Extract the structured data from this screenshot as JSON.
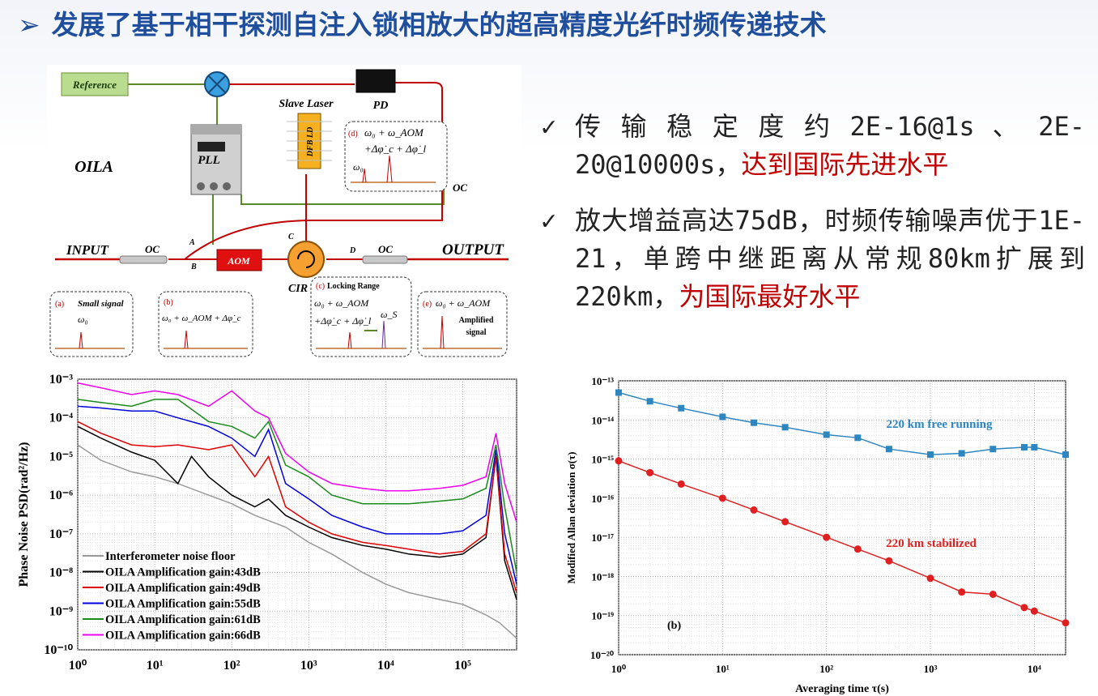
{
  "slide": {
    "title_arrow": "➢",
    "title": "发展了基于相干探测自注入锁相放大的超高精度光纤时频传递技术"
  },
  "bullets": [
    {
      "check": "✓",
      "text": "传 输 稳 定 度 约 2E-16@1s 、 2E-20@10000s，",
      "highlight": "达到国际先进水平"
    },
    {
      "check": "✓",
      "text": "放大增益高达75dB，时频传输噪声优于1E-21，单跨中继距离从常规80km扩展到220km，",
      "highlight": "为国际最好水平"
    }
  ],
  "diagram": {
    "reference": "Reference",
    "pll": "PLL",
    "oila": "OILA",
    "slave_laser": "Slave Laser",
    "pd": "PD",
    "dfb": "DFB LD",
    "oc": "OC",
    "input": "INPUT",
    "output": "OUTPUT",
    "aom": "AOM",
    "cir": "CIR",
    "port_a": "A",
    "port_b": "B",
    "port_c": "C",
    "port_d": "D",
    "box_a_tag": "(a)",
    "box_a_title": "Small signal",
    "box_a_eq": "ω₀",
    "box_b_tag": "(b)",
    "box_b_eq": "ω₀ + ω_AOM + Δφ̇_c",
    "box_c_tag": "(c)",
    "box_c_title": "Locking Range",
    "box_c_eq1": "ω₀ + ω_AOM",
    "box_c_eq2": "+Δφ̇_c + Δφ̇_l",
    "box_c_eq3": "ω_S",
    "box_d_tag": "(d)",
    "box_d_eq1": "ω₀ + ω_AOM",
    "box_d_eq2": "+Δφ̇_c + Δφ̇_l",
    "box_d_eq3": "ω₀",
    "box_e_tag": "(e)",
    "box_e_eq": "ω₀ + ω_AOM",
    "box_e_title1": "Amplified",
    "box_e_title2": "signal",
    "colors": {
      "red": "#c00000",
      "green": "#5a8a2a",
      "orange": "#e89a2a",
      "ref_box": "#b9dc8e",
      "mixer": "#3aa0e0"
    }
  },
  "chart_data": [
    {
      "type": "line",
      "xscale": "log",
      "yscale": "log",
      "xlim": [
        1,
        500000
      ],
      "ylim": [
        1e-10,
        0.001
      ],
      "ylabel": "Phase Noise PSD(rad²/Hz)",
      "xticks": [
        "10⁰",
        "10¹",
        "10²",
        "10³",
        "10⁴",
        "10⁵"
      ],
      "yticks": [
        "10⁻³",
        "10⁻⁴",
        "10⁻⁵",
        "10⁻⁶",
        "10⁻⁷",
        "10⁻⁸",
        "10⁻⁹",
        "10⁻¹⁰"
      ],
      "legend_position": "bottom-left",
      "series": [
        {
          "name": "Interferometer noise floor",
          "color": "#999999",
          "x": [
            1,
            2,
            5,
            10,
            20,
            50,
            100,
            200,
            500,
            1000,
            2000,
            5000,
            10000,
            20000,
            50000,
            100000,
            200000,
            300000,
            500000
          ],
          "y": [
            2e-05,
            8e-06,
            4e-06,
            3e-06,
            2e-06,
            1e-06,
            6e-07,
            3e-07,
            1.5e-07,
            6e-08,
            3e-08,
            1e-08,
            5e-09,
            3e-09,
            2e-09,
            1.5e-09,
            8e-10,
            5e-10,
            2e-10
          ]
        },
        {
          "name": "OILA Amplification gain:43dB",
          "color": "#000000",
          "x": [
            1,
            2,
            5,
            10,
            20,
            30,
            50,
            100,
            200,
            300,
            500,
            1000,
            2000,
            5000,
            10000,
            20000,
            50000,
            100000,
            200000,
            270000,
            350000,
            500000
          ],
          "y": [
            6e-05,
            3e-05,
            1.3e-05,
            8e-06,
            2e-06,
            1e-05,
            3e-06,
            1e-06,
            5e-07,
            8e-07,
            3e-07,
            1.5e-07,
            8e-08,
            5e-08,
            4e-08,
            3e-08,
            2.5e-08,
            3e-08,
            8e-08,
            1e-05,
            2e-08,
            2e-09
          ]
        },
        {
          "name": "OILA Amplification gain:49dB",
          "color": "#e00000",
          "x": [
            1,
            2,
            5,
            10,
            20,
            50,
            100,
            200,
            300,
            500,
            1000,
            2000,
            5000,
            10000,
            20000,
            50000,
            100000,
            200000,
            270000,
            350000,
            500000
          ],
          "y": [
            8e-05,
            4e-05,
            2e-05,
            1.8e-05,
            2e-05,
            1.5e-05,
            2e-05,
            3e-06,
            1e-05,
            5e-07,
            2e-07,
            1e-07,
            6e-08,
            5e-08,
            4e-08,
            3e-08,
            3.5e-08,
            1e-07,
            1e-05,
            3e-08,
            3e-09
          ]
        },
        {
          "name": "OILA Amplification gain:55dB",
          "color": "#0000dd",
          "x": [
            1,
            2,
            5,
            10,
            20,
            50,
            100,
            200,
            300,
            500,
            1000,
            2000,
            5000,
            10000,
            20000,
            50000,
            100000,
            200000,
            270000,
            350000,
            500000
          ],
          "y": [
            0.0002,
            0.00018,
            0.00015,
            0.00015,
            0.0001,
            6e-05,
            3e-05,
            1e-05,
            5e-05,
            2e-06,
            8e-07,
            3e-07,
            1.5e-07,
            1e-07,
            1e-07,
            1e-07,
            1.2e-07,
            3e-07,
            1.5e-05,
            1e-07,
            5e-09
          ]
        },
        {
          "name": "OILA Amplification gain:61dB",
          "color": "#1a8a1a",
          "x": [
            1,
            2,
            5,
            10,
            20,
            50,
            100,
            200,
            300,
            500,
            1000,
            2000,
            5000,
            10000,
            20000,
            50000,
            100000,
            200000,
            270000,
            350000,
            500000
          ],
          "y": [
            0.0003,
            0.00025,
            0.0002,
            0.0003,
            0.0003,
            8e-05,
            6e-05,
            3e-05,
            8e-05,
            6e-06,
            3e-06,
            1e-06,
            6e-07,
            6e-07,
            6e-07,
            7e-07,
            8e-07,
            1.5e-06,
            2e-05,
            5e-07,
            1e-08
          ]
        },
        {
          "name": "OILA Amplification gain:66dB",
          "color": "#ee00ee",
          "x": [
            1,
            2,
            5,
            10,
            20,
            50,
            100,
            200,
            300,
            500,
            1000,
            2000,
            5000,
            10000,
            20000,
            50000,
            100000,
            200000,
            270000,
            350000,
            500000
          ],
          "y": [
            0.0008,
            0.0006,
            0.0004,
            0.0005,
            0.0004,
            0.0002,
            0.0005,
            0.00015,
            0.0001,
            1.2e-05,
            4e-06,
            2e-06,
            1.5e-06,
            1.3e-06,
            1.3e-06,
            1.5e-06,
            1.8e-06,
            3e-06,
            4e-05,
            2e-06,
            2e-07
          ]
        }
      ]
    },
    {
      "type": "line",
      "xscale": "log",
      "yscale": "log",
      "xlim": [
        1,
        20000
      ],
      "ylim": [
        1e-20,
        1e-13
      ],
      "xlabel": "Averaging time τ(s)",
      "ylabel": "Modified Allan deviation σ(τ)",
      "xticks": [
        "10⁰",
        "10¹",
        "10²",
        "10³",
        "10⁴"
      ],
      "yticks": [
        "10⁻¹³",
        "10⁻¹⁴",
        "10⁻¹⁵",
        "10⁻¹⁶",
        "10⁻¹⁷",
        "10⁻¹⁸",
        "10⁻¹⁹",
        "10⁻²⁰"
      ],
      "panel_label": "(b)",
      "series": [
        {
          "name": "220 km free running",
          "color": "#2e86c1",
          "marker": "square",
          "x": [
            1,
            2,
            4,
            10,
            20,
            40,
            100,
            200,
            400,
            1000,
            2000,
            4000,
            8000,
            10000,
            20000
          ],
          "y": [
            5e-14,
            3e-14,
            2e-14,
            1.2e-14,
            8.5e-15,
            6.5e-15,
            4.2e-15,
            3.5e-15,
            1.8e-15,
            1.3e-15,
            1.4e-15,
            1.8e-15,
            2e-15,
            2e-15,
            1.3e-15
          ]
        },
        {
          "name": "220 km stabilized",
          "color": "#e02020",
          "marker": "circle",
          "x": [
            1,
            2,
            4,
            10,
            20,
            40,
            100,
            200,
            400,
            1000,
            2000,
            4000,
            8000,
            10000,
            20000
          ],
          "y": [
            9e-16,
            4.5e-16,
            2.3e-16,
            1e-16,
            5e-17,
            2.5e-17,
            1e-17,
            5e-18,
            2.5e-18,
            9e-19,
            4e-19,
            3.5e-19,
            1.6e-19,
            1.3e-19,
            6.5e-20
          ]
        }
      ]
    }
  ]
}
